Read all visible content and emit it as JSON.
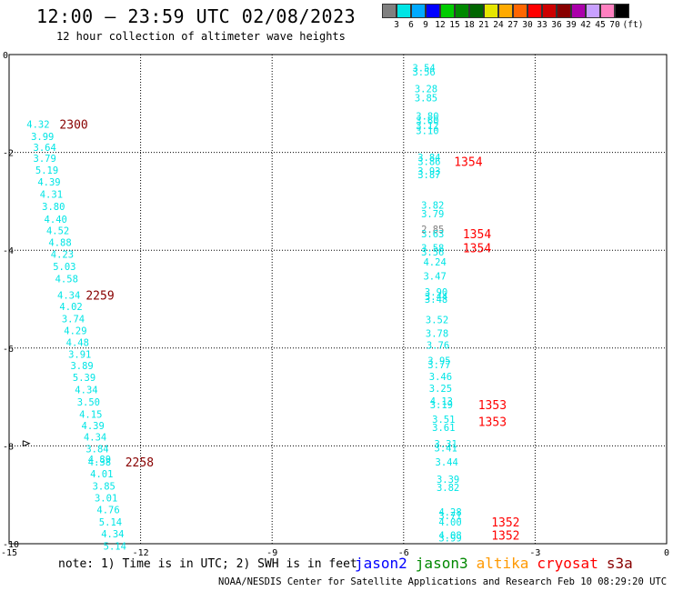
{
  "header": {
    "title": "12:00 — 23:59 UTC 02/08/2023",
    "subtitle": "12 hour collection of altimeter wave heights"
  },
  "legend": {
    "colors": [
      "#808080",
      "#00e5e5",
      "#00aaff",
      "#0000ff",
      "#00cc00",
      "#008800",
      "#006600",
      "#e5e500",
      "#ffaa00",
      "#ff6600",
      "#ff0000",
      "#cc0000",
      "#880000",
      "#aa00aa",
      "#c8a0ff",
      "#ff80c0",
      "#000000"
    ],
    "labels": [
      "3",
      "6",
      "9",
      "12",
      "15",
      "18",
      "21",
      "24",
      "27",
      "30",
      "33",
      "36",
      "39",
      "42",
      "45",
      "70",
      "(ft)"
    ]
  },
  "chart_data": {
    "type": "scatter",
    "xlim": [
      -15,
      0
    ],
    "ylim": [
      -10,
      0
    ],
    "x_ticks": [
      "-15",
      "-12",
      "-9",
      "-6",
      "-3",
      "0"
    ],
    "y_ticks": [
      "0",
      "-2",
      "-4",
      "-6",
      "-8",
      "-10"
    ],
    "grid": true,
    "points": [
      {
        "x": -14.6,
        "y": -1.42,
        "label": "4.32",
        "color": "#00e5e5"
      },
      {
        "x": -14.5,
        "y": -1.67,
        "label": "3.99",
        "color": "#00e5e5"
      },
      {
        "x": -14.45,
        "y": -1.9,
        "label": "3.64",
        "color": "#00e5e5"
      },
      {
        "x": -14.45,
        "y": -2.12,
        "label": "3.79",
        "color": "#00e5e5"
      },
      {
        "x": -14.4,
        "y": -2.36,
        "label": "5.19",
        "color": "#00e5e5"
      },
      {
        "x": -14.35,
        "y": -2.6,
        "label": "4.39",
        "color": "#00e5e5"
      },
      {
        "x": -14.3,
        "y": -2.85,
        "label": "4.31",
        "color": "#00e5e5"
      },
      {
        "x": -14.25,
        "y": -3.1,
        "label": "3.80",
        "color": "#00e5e5"
      },
      {
        "x": -14.2,
        "y": -3.36,
        "label": "4.40",
        "color": "#00e5e5"
      },
      {
        "x": -14.15,
        "y": -3.6,
        "label": "4.52",
        "color": "#00e5e5"
      },
      {
        "x": -14.1,
        "y": -3.84,
        "label": "4.88",
        "color": "#00e5e5"
      },
      {
        "x": -14.05,
        "y": -4.08,
        "label": "4.23",
        "color": "#00e5e5"
      },
      {
        "x": -14.0,
        "y": -4.33,
        "label": "5.03",
        "color": "#00e5e5"
      },
      {
        "x": -13.95,
        "y": -4.58,
        "label": "4.58",
        "color": "#00e5e5"
      },
      {
        "x": -13.9,
        "y": -4.92,
        "label": "4.34",
        "color": "#00e5e5"
      },
      {
        "x": -13.85,
        "y": -5.15,
        "label": "4.02",
        "color": "#00e5e5"
      },
      {
        "x": -13.8,
        "y": -5.4,
        "label": "3.74",
        "color": "#00e5e5"
      },
      {
        "x": -13.75,
        "y": -5.64,
        "label": "4.29",
        "color": "#00e5e5"
      },
      {
        "x": -13.7,
        "y": -5.88,
        "label": "4.48",
        "color": "#00e5e5"
      },
      {
        "x": -13.65,
        "y": -6.12,
        "label": "3.91",
        "color": "#00e5e5"
      },
      {
        "x": -13.6,
        "y": -6.36,
        "label": "3.89",
        "color": "#00e5e5"
      },
      {
        "x": -13.55,
        "y": -6.6,
        "label": "5.39",
        "color": "#00e5e5"
      },
      {
        "x": -13.5,
        "y": -6.85,
        "label": "4.34",
        "color": "#00e5e5"
      },
      {
        "x": -13.45,
        "y": -7.1,
        "label": "3.50",
        "color": "#00e5e5"
      },
      {
        "x": -13.4,
        "y": -7.35,
        "label": "4.15",
        "color": "#00e5e5"
      },
      {
        "x": -13.35,
        "y": -7.58,
        "label": "4.39",
        "color": "#00e5e5"
      },
      {
        "x": -13.3,
        "y": -7.82,
        "label": "4.34",
        "color": "#00e5e5"
      },
      {
        "x": -13.25,
        "y": -8.06,
        "label": "3.84",
        "color": "#00e5e5"
      },
      {
        "x": -13.2,
        "y": -8.27,
        "label": "4.89",
        "color": "#00e5e5"
      },
      {
        "x": -13.2,
        "y": -8.33,
        "label": "4.38",
        "color": "#00e5e5"
      },
      {
        "x": -13.15,
        "y": -8.57,
        "label": "4.01",
        "color": "#00e5e5"
      },
      {
        "x": -13.1,
        "y": -8.82,
        "label": "3.85",
        "color": "#00e5e5"
      },
      {
        "x": -13.05,
        "y": -9.06,
        "label": "3.01",
        "color": "#00e5e5"
      },
      {
        "x": -13.0,
        "y": -9.3,
        "label": "4.76",
        "color": "#00e5e5"
      },
      {
        "x": -12.95,
        "y": -9.55,
        "label": "5.14",
        "color": "#00e5e5"
      },
      {
        "x": -12.9,
        "y": -9.8,
        "label": "4.34",
        "color": "#00e5e5"
      },
      {
        "x": -12.85,
        "y": -10.05,
        "label": "5.14",
        "color": "#00e5e5"
      },
      {
        "x": -5.8,
        "y": -0.27,
        "label": "3.54",
        "color": "#00e5e5"
      },
      {
        "x": -5.8,
        "y": -0.35,
        "label": "3.56",
        "color": "#00e5e5"
      },
      {
        "x": -5.75,
        "y": -0.7,
        "label": "3.28",
        "color": "#00e5e5"
      },
      {
        "x": -5.75,
        "y": -0.88,
        "label": "3.85",
        "color": "#00e5e5"
      },
      {
        "x": -5.72,
        "y": -1.25,
        "label": "3.80",
        "color": "#00e5e5"
      },
      {
        "x": -5.72,
        "y": -1.35,
        "label": "3.60",
        "color": "#00e5e5"
      },
      {
        "x": -5.72,
        "y": -1.45,
        "label": "3.12",
        "color": "#00e5e5"
      },
      {
        "x": -5.72,
        "y": -1.55,
        "label": "3.10",
        "color": "#00e5e5"
      },
      {
        "x": -5.68,
        "y": -2.1,
        "label": "3.84",
        "color": "#00e5e5"
      },
      {
        "x": -5.68,
        "y": -2.18,
        "label": "3.86",
        "color": "#00e5e5"
      },
      {
        "x": -5.68,
        "y": -2.38,
        "label": "3.93",
        "color": "#00e5e5"
      },
      {
        "x": -5.68,
        "y": -2.45,
        "label": "3.87",
        "color": "#00e5e5"
      },
      {
        "x": -5.6,
        "y": -3.08,
        "label": "3.82",
        "color": "#00e5e5"
      },
      {
        "x": -5.6,
        "y": -3.25,
        "label": "3.79",
        "color": "#00e5e5"
      },
      {
        "x": -5.6,
        "y": -3.57,
        "label": "2.85",
        "color": "#808080"
      },
      {
        "x": -5.6,
        "y": -3.66,
        "label": "3.63",
        "color": "#00e5e5"
      },
      {
        "x": -5.6,
        "y": -3.95,
        "label": "3.58",
        "color": "#00e5e5"
      },
      {
        "x": -5.6,
        "y": -4.03,
        "label": "3.56",
        "color": "#00e5e5"
      },
      {
        "x": -5.55,
        "y": -4.24,
        "label": "4.24",
        "color": "#00e5e5"
      },
      {
        "x": -5.55,
        "y": -4.53,
        "label": "3.47",
        "color": "#00e5e5"
      },
      {
        "x": -5.52,
        "y": -4.85,
        "label": "3.90",
        "color": "#00e5e5"
      },
      {
        "x": -5.52,
        "y": -4.94,
        "label": "3.44",
        "color": "#00e5e5"
      },
      {
        "x": -5.52,
        "y": -5.0,
        "label": "3.48",
        "color": "#00e5e5"
      },
      {
        "x": -5.5,
        "y": -5.42,
        "label": "3.52",
        "color": "#00e5e5"
      },
      {
        "x": -5.5,
        "y": -5.7,
        "label": "3.78",
        "color": "#00e5e5"
      },
      {
        "x": -5.48,
        "y": -5.94,
        "label": "3.76",
        "color": "#00e5e5"
      },
      {
        "x": -5.45,
        "y": -6.25,
        "label": "3.95",
        "color": "#00e5e5"
      },
      {
        "x": -5.45,
        "y": -6.34,
        "label": "3.77",
        "color": "#00e5e5"
      },
      {
        "x": -5.42,
        "y": -6.58,
        "label": "3.46",
        "color": "#00e5e5"
      },
      {
        "x": -5.42,
        "y": -6.82,
        "label": "3.25",
        "color": "#00e5e5"
      },
      {
        "x": -5.4,
        "y": -7.08,
        "label": "4.13",
        "color": "#00e5e5"
      },
      {
        "x": -5.4,
        "y": -7.16,
        "label": "3.19",
        "color": "#00e5e5"
      },
      {
        "x": -5.35,
        "y": -7.45,
        "label": "3.51",
        "color": "#00e5e5"
      },
      {
        "x": -5.35,
        "y": -7.62,
        "label": "3.61",
        "color": "#00e5e5"
      },
      {
        "x": -5.3,
        "y": -7.96,
        "label": "3.31",
        "color": "#00e5e5"
      },
      {
        "x": -5.3,
        "y": -8.04,
        "label": "3.41",
        "color": "#00e5e5"
      },
      {
        "x": -5.28,
        "y": -8.33,
        "label": "3.44",
        "color": "#00e5e5"
      },
      {
        "x": -5.25,
        "y": -8.68,
        "label": "3.39",
        "color": "#00e5e5"
      },
      {
        "x": -5.25,
        "y": -8.85,
        "label": "3.82",
        "color": "#00e5e5"
      },
      {
        "x": -5.2,
        "y": -9.35,
        "label": "4.28",
        "color": "#00e5e5"
      },
      {
        "x": -5.2,
        "y": -9.42,
        "label": "3.71",
        "color": "#00e5e5"
      },
      {
        "x": -5.2,
        "y": -9.55,
        "label": "4.00",
        "color": "#00e5e5"
      },
      {
        "x": -5.2,
        "y": -9.82,
        "label": "4.08",
        "color": "#00e5e5"
      },
      {
        "x": -5.2,
        "y": -9.88,
        "label": "3.99",
        "color": "#00e5e5"
      }
    ],
    "time_labels": [
      {
        "x": -13.85,
        "y": -1.42,
        "label": "2300",
        "color": "#880000"
      },
      {
        "x": -13.25,
        "y": -4.92,
        "label": "2259",
        "color": "#880000"
      },
      {
        "x": -12.35,
        "y": -8.33,
        "label": "2258",
        "color": "#880000"
      },
      {
        "x": -4.85,
        "y": -2.18,
        "label": "1354",
        "color": "#ff0000"
      },
      {
        "x": -4.65,
        "y": -3.66,
        "label": "1354",
        "color": "#ff0000"
      },
      {
        "x": -4.65,
        "y": -3.95,
        "label": "1354",
        "color": "#ff0000"
      },
      {
        "x": -4.3,
        "y": -7.16,
        "label": "1353",
        "color": "#ff0000"
      },
      {
        "x": -4.3,
        "y": -7.5,
        "label": "1353",
        "color": "#ff0000"
      },
      {
        "x": -4.0,
        "y": -9.55,
        "label": "1352",
        "color": "#ff0000"
      },
      {
        "x": -4.0,
        "y": -9.82,
        "label": "1352",
        "color": "#ff0000"
      }
    ],
    "arrow": {
      "x": -14.6,
      "y": -7.95
    }
  },
  "footer": {
    "note": "note:  1) Time is in UTC; 2) SWH is in feet",
    "satellites": [
      {
        "name": "jason2",
        "color": "#0000ff"
      },
      {
        "name": "jason3",
        "color": "#008800"
      },
      {
        "name": "altika",
        "color": "#ff9900"
      },
      {
        "name": "cryosat",
        "color": "#ff0000"
      },
      {
        "name": "s3a",
        "color": "#880000"
      }
    ],
    "credit": "NOAA/NESDIS Center for Satellite Applications and Research   Feb 10 08:29:20 UTC 2023"
  }
}
